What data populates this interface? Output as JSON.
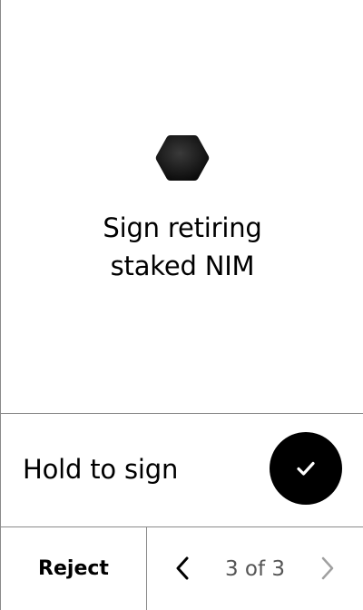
{
  "screen": {
    "icon": "hexagon-icon",
    "title": "Sign retiring\nstaked NIM"
  },
  "hold": {
    "label": "Hold to sign",
    "button_icon": "checkmark-icon"
  },
  "footer": {
    "reject_label": "Reject",
    "prev_icon": "chevron-left-icon",
    "next_icon": "chevron-right-icon",
    "page_indicator": "3 of 3"
  },
  "colors": {
    "text": "#000000",
    "divider": "#8a8a8a",
    "muted": "#555555",
    "disabled_chevron": "#a0a0a0",
    "button_bg": "#000000"
  }
}
